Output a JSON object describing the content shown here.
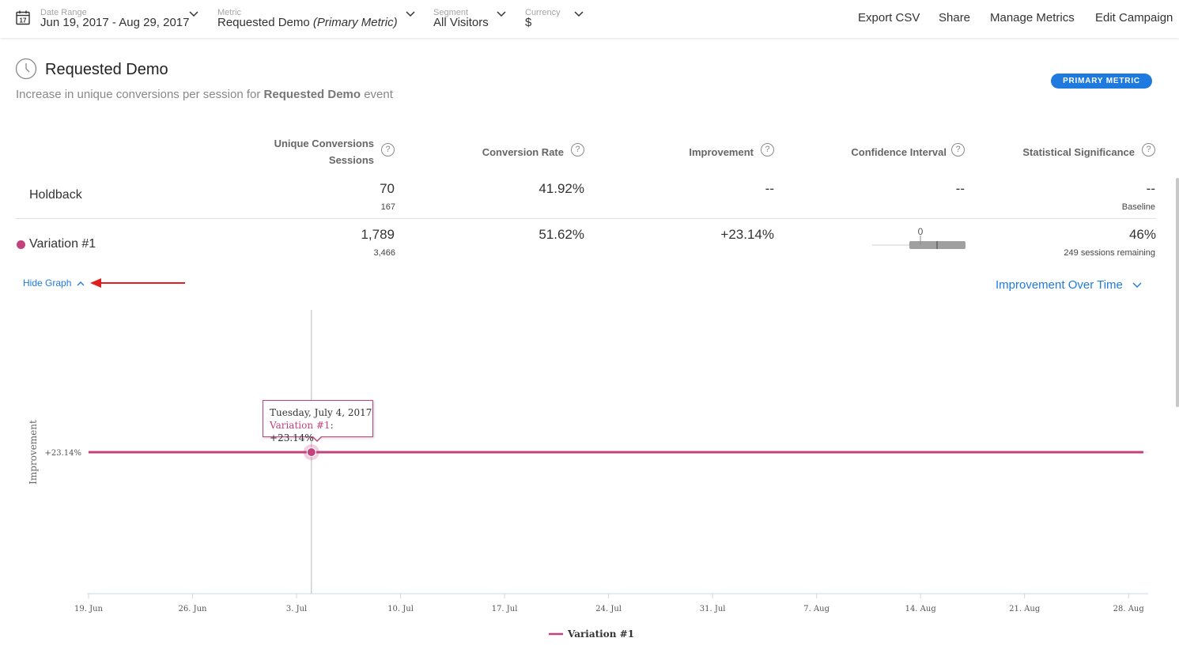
{
  "toolbar": {
    "filters": [
      {
        "label": "Date Range",
        "value": "Jun 19, 2017 - Aug 29, 2017"
      },
      {
        "label": "Metric",
        "value": "Requested Demo",
        "value_suffix": "(Primary Metric)"
      },
      {
        "label": "Segment",
        "value": "All Visitors"
      },
      {
        "label": "Currency",
        "value": "$"
      }
    ],
    "calendar_day": "17",
    "links": [
      "Export CSV",
      "Share",
      "Manage Metrics",
      "Edit Campaign"
    ]
  },
  "metric": {
    "title": "Requested Demo",
    "subtitle_prefix": "Increase in unique conversions per session for",
    "subtitle_bold": "Requested Demo",
    "subtitle_suffix": "event",
    "badge": "PRIMARY METRIC"
  },
  "table": {
    "headers": {
      "conversions_line1": "Unique Conversions",
      "conversions_line2": "Sessions",
      "conversion_rate": "Conversion Rate",
      "improvement": "Improvement",
      "confidence_interval": "Confidence Interval",
      "significance": "Statistical Significance",
      "help": "?"
    },
    "rows": [
      {
        "name": "Holdback",
        "conversions": "70",
        "sessions": "167",
        "rate": "41.92%",
        "improvement": "--",
        "confidence": "--",
        "significance": "--",
        "significance_note": "Baseline"
      },
      {
        "name": "Variation #1",
        "conversions": "1,789",
        "sessions": "3,466",
        "rate": "51.62%",
        "improvement": "+23.14%",
        "confidence_zero": "0",
        "significance": "46%",
        "significance_note": "249 sessions remaining"
      }
    ]
  },
  "graph": {
    "hide_label": "Hide Graph",
    "view_label": "Improvement Over Time"
  },
  "colors": {
    "accent": "#1f7ae0",
    "series": "#c2427e"
  },
  "chart_data": {
    "type": "line",
    "title": "",
    "ylabel": "Improvement",
    "xlabel": "",
    "x_ticks": [
      "19. Jun",
      "26. Jun",
      "3. Jul",
      "10. Jul",
      "17. Jul",
      "24. Jul",
      "31. Jul",
      "7. Aug",
      "14. Aug",
      "21. Aug",
      "28. Aug"
    ],
    "y_tick_label": "+23.14%",
    "x_range": [
      "2017-06-19",
      "2017-08-29"
    ],
    "series": [
      {
        "name": "Variation #1",
        "x": [
          "2017-06-19",
          "2017-08-29"
        ],
        "y": [
          23.14,
          23.14
        ]
      }
    ],
    "hover": {
      "date": "2017-07-04",
      "date_label": "Tuesday, July 4, 2017",
      "series": "Variation #1",
      "value": "+23.14%"
    },
    "legend": "bottom-center"
  }
}
